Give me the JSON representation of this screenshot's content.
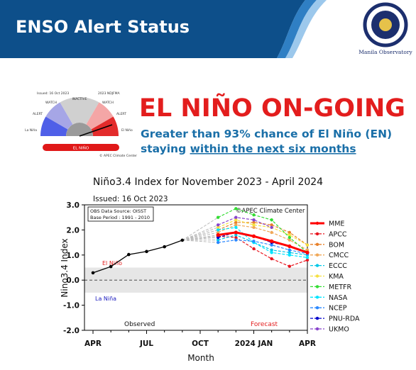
{
  "header": {
    "title": "ENSO Alert Status",
    "organization": "Manila Observatory"
  },
  "gauge": {
    "issued": "Issued: 16 Oct 2023",
    "period": "2023 NDJFMA",
    "inactive": "INACTIVE",
    "watch_left": "WATCH",
    "watch_right": "WATCH",
    "alert_left": "ALERT",
    "alert_right": "ALERT",
    "la_nina": "La Niña",
    "el_nino": "El Niño",
    "status": "EL NIÑO",
    "credit": "© APEC Climate Center"
  },
  "headline": "EL NIÑO ON-GOING",
  "subtitle": {
    "line1": "Greater than 93% chance of El Niño (EN)",
    "line2_start": "staying",
    "line2_underlined": "within the next six months"
  },
  "chart_data": {
    "type": "line",
    "title": "Niño3.4 Index for November 2023 - April 2024",
    "x_label": "Month",
    "y_label": "Nino3.4 Index",
    "annotations": {
      "issued": "Issued: 16 Oct 2023",
      "source": "OBS Data Source: OISST",
      "base": "Base Period : 1991 - 2010",
      "credit": "©APEC Climate Center",
      "el_nino": "El Niño",
      "la_nina": "La Niña",
      "observed": "Observed",
      "forecast": "Forecast"
    },
    "categories": [
      "APR",
      null,
      null,
      "JUL",
      null,
      null,
      "OCT",
      null,
      null,
      "2024 JAN",
      null,
      null,
      "APR"
    ],
    "ylim": [
      -2,
      3
    ],
    "yticks": [
      {
        "value": -2,
        "label": "-2.0"
      },
      {
        "value": -1,
        "label": "-1.0"
      },
      {
        "value": 0,
        "label": "0.0"
      },
      {
        "value": 1,
        "label": "1.0"
      },
      {
        "value": 2,
        "label": "2.0"
      },
      {
        "value": 3,
        "label": "3.0"
      }
    ],
    "neutral_band": [
      -0.5,
      0.5
    ],
    "observed": {
      "color": "#000000",
      "values": [
        0.29,
        0.54,
        1.02,
        1.14,
        1.33,
        1.59,
        null,
        null,
        null,
        null,
        null,
        null,
        null
      ]
    },
    "series": [
      {
        "name": "MME",
        "color": "#ff0000",
        "style": "solid",
        "values": [
          null,
          null,
          null,
          null,
          null,
          null,
          null,
          1.8,
          1.9,
          1.75,
          1.55,
          1.35,
          1.1
        ]
      },
      {
        "name": "APCC",
        "color": "#e8141e",
        "style": "dashed",
        "values": [
          null,
          null,
          null,
          null,
          null,
          null,
          null,
          1.75,
          1.7,
          1.25,
          0.85,
          0.55,
          0.8
        ]
      },
      {
        "name": "BOM",
        "color": "#e8802a",
        "style": "dashed",
        "values": [
          null,
          null,
          null,
          null,
          null,
          null,
          null,
          2.0,
          2.3,
          2.3,
          2.2,
          1.9,
          1.4
        ]
      },
      {
        "name": "CMCC",
        "color": "#f0a858",
        "style": "dashed",
        "values": [
          null,
          null,
          null,
          null,
          null,
          null,
          null,
          1.9,
          2.2,
          2.1,
          1.9,
          1.6,
          1.2
        ]
      },
      {
        "name": "ECCC",
        "color": "#00c8e8",
        "style": "dashed",
        "values": [
          null,
          null,
          null,
          null,
          null,
          null,
          null,
          1.6,
          1.8,
          1.5,
          1.2,
          1.1,
          1.0
        ]
      },
      {
        "name": "KMA",
        "color": "#f5e040",
        "style": "dashed",
        "values": [
          null,
          null,
          null,
          null,
          null,
          null,
          null,
          2.1,
          2.4,
          2.2,
          2.1,
          1.8,
          1.4
        ]
      },
      {
        "name": "METFR",
        "color": "#33dd33",
        "style": "dashed",
        "values": [
          null,
          null,
          null,
          null,
          null,
          null,
          null,
          2.5,
          2.85,
          2.6,
          2.4,
          1.7,
          1.1
        ]
      },
      {
        "name": "NASA",
        "color": "#00e5ff",
        "style": "dashed",
        "values": [
          null,
          null,
          null,
          null,
          null,
          null,
          null,
          2.0,
          2.1,
          1.5,
          1.1,
          1.0,
          0.9
        ]
      },
      {
        "name": "NCEP",
        "color": "#2a88ff",
        "style": "dashed",
        "values": [
          null,
          null,
          null,
          null,
          null,
          null,
          null,
          1.5,
          1.6,
          1.55,
          1.4,
          1.2,
          1.05
        ]
      },
      {
        "name": "PNU-RDA",
        "color": "#0000cc",
        "style": "dashed",
        "values": [
          null,
          null,
          null,
          null,
          null,
          null,
          null,
          1.7,
          1.9,
          1.75,
          1.5,
          1.35,
          1.1
        ]
      },
      {
        "name": "UKMO",
        "color": "#8844cc",
        "style": "dashed",
        "values": [
          null,
          null,
          null,
          null,
          null,
          null,
          null,
          2.2,
          2.5,
          2.4,
          2.1,
          null,
          null
        ]
      }
    ],
    "legend": "right"
  }
}
